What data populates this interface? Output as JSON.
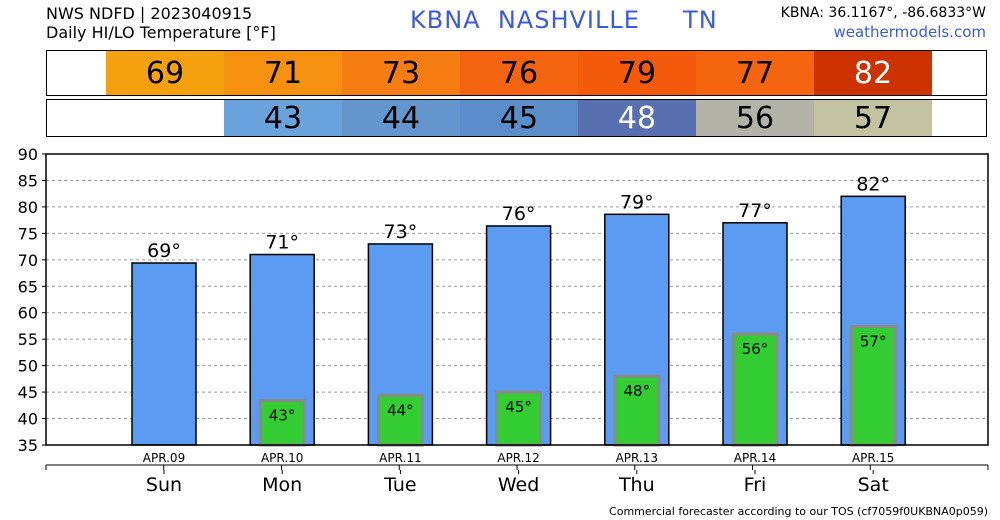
{
  "header": {
    "line1": "NWS NDFD | 2023040915",
    "line2": "Daily HI/LO Temperature [°F]",
    "station_title": "KBNA  NASHVILLE     TN",
    "coords": "KBNA: 36.1167°, -86.6833°W",
    "site": "weathermodels.com"
  },
  "strips": {
    "hi": [
      {
        "text": "69",
        "color": "#f5a00f",
        "textcolor": "#000000"
      },
      {
        "text": "71",
        "color": "#f59010",
        "textcolor": "#000000"
      },
      {
        "text": "73",
        "color": "#f57d12",
        "textcolor": "#000000"
      },
      {
        "text": "76",
        "color": "#f36310",
        "textcolor": "#000000"
      },
      {
        "text": "79",
        "color": "#f35a0c",
        "textcolor": "#000000"
      },
      {
        "text": "77",
        "color": "#f5650f",
        "textcolor": "#000000"
      },
      {
        "text": "82",
        "color": "#cc3300",
        "textcolor": "#ffffff"
      }
    ],
    "lo": [
      {
        "text": "",
        "color": "#ffffff",
        "textcolor": "#000000"
      },
      {
        "text": "43",
        "color": "#6aa3dc",
        "textcolor": "#000000"
      },
      {
        "text": "44",
        "color": "#6296cc",
        "textcolor": "#000000"
      },
      {
        "text": "45",
        "color": "#5b8ec8",
        "textcolor": "#000000"
      },
      {
        "text": "48",
        "color": "#5870b0",
        "textcolor": "#ffffff"
      },
      {
        "text": "56",
        "color": "#b2b2a8",
        "textcolor": "#000000"
      },
      {
        "text": "57",
        "color": "#c2c2a0",
        "textcolor": "#000000"
      }
    ]
  },
  "footer": "Commercial forecaster according to our TOS (cf7059f0UKBNA0p059)",
  "chart_data": {
    "type": "bar",
    "categories": [
      "Sun",
      "Mon",
      "Tue",
      "Wed",
      "Thu",
      "Fri",
      "Sat"
    ],
    "dates": [
      "APR.09",
      "APR.10",
      "APR.11",
      "APR.12",
      "APR.13",
      "APR.14",
      "APR.15"
    ],
    "series": [
      {
        "values": [
          69.4,
          71,
          73,
          76.4,
          78.6,
          77,
          82
        ],
        "labels": [
          "69°",
          "71°",
          "73°",
          "76°",
          "79°",
          "77°",
          "82°"
        ],
        "color": "#5b9cf2"
      },
      {
        "values": [
          null,
          43.4,
          44.4,
          45,
          48,
          56,
          57.4
        ],
        "labels": [
          "",
          "43°",
          "44°",
          "45°",
          "48°",
          "56°",
          "57°"
        ],
        "color": "#33cc33"
      }
    ],
    "ylim": [
      35,
      90
    ],
    "yticks": [
      35,
      40,
      45,
      50,
      55,
      60,
      65,
      70,
      75,
      80,
      85,
      90
    ],
    "grid": true
  }
}
